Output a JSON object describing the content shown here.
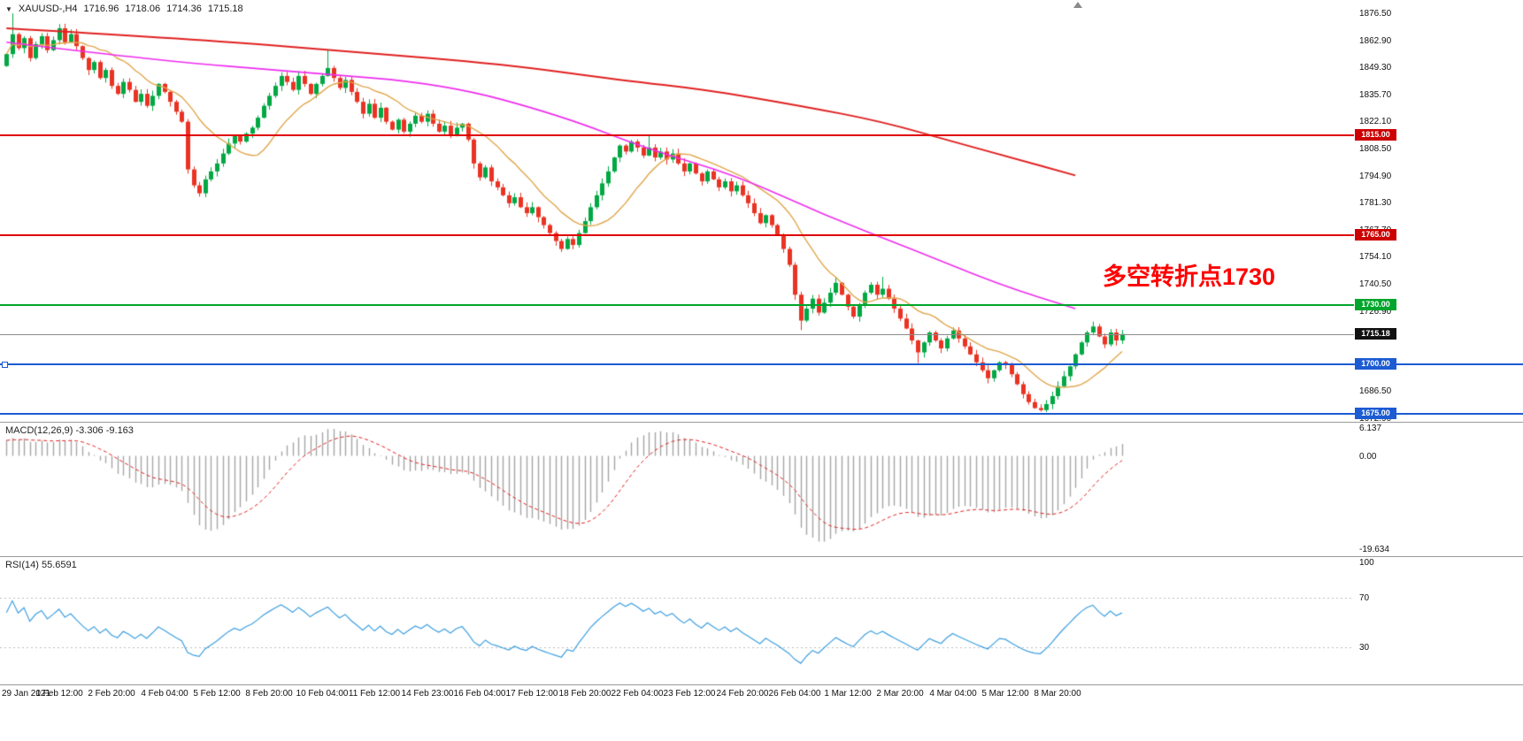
{
  "header": {
    "symbol": "XAUUSD-,H4",
    "open": "1716.96",
    "high": "1718.06",
    "low": "1714.36",
    "close": "1715.18"
  },
  "annotation": {
    "text": "多空转折点1730",
    "color": "#ff0000"
  },
  "price_scale": {
    "ticks": [
      "1876.50",
      "1862.90",
      "1849.30",
      "1835.70",
      "1822.10",
      "1808.50",
      "1794.90",
      "1781.30",
      "1767.70",
      "1754.10",
      "1740.50",
      "1726.90",
      "1686.50",
      "1672.90"
    ]
  },
  "chart_data": {
    "type": "candlestick",
    "symbol": "XAUUSD-",
    "timeframe": "H4",
    "price_axis": {
      "max": 1883.2,
      "min": 1671.1
    },
    "first_open": 1850,
    "closes": [
      1856,
      1866,
      1859,
      1864,
      1854,
      1861,
      1865,
      1858,
      1863,
      1869,
      1862,
      1866,
      1860,
      1854,
      1848,
      1852,
      1844,
      1848,
      1840,
      1836,
      1842,
      1838,
      1832,
      1836,
      1830,
      1835,
      1841,
      1837,
      1832,
      1827,
      1822,
      1798,
      1790,
      1786,
      1793,
      1797,
      1801,
      1806,
      1811,
      1815,
      1812,
      1816,
      1819,
      1824,
      1830,
      1835,
      1840,
      1845,
      1842,
      1838,
      1845,
      1841,
      1836,
      1841,
      1845,
      1849,
      1844,
      1839,
      1843,
      1837,
      1832,
      1826,
      1831,
      1824,
      1829,
      1822,
      1818,
      1823,
      1817,
      1821,
      1825,
      1822,
      1826,
      1821,
      1817,
      1820,
      1815,
      1819,
      1821,
      1813,
      1801,
      1794,
      1799,
      1792,
      1789,
      1785,
      1781,
      1784,
      1779,
      1776,
      1779,
      1774,
      1770,
      1766,
      1762,
      1758,
      1763,
      1760,
      1766,
      1772,
      1779,
      1785,
      1791,
      1797,
      1804,
      1810,
      1807,
      1812,
      1809,
      1805,
      1809,
      1804,
      1807,
      1803,
      1806,
      1801,
      1797,
      1801,
      1796,
      1792,
      1797,
      1793,
      1789,
      1792,
      1787,
      1790,
      1785,
      1781,
      1776,
      1771,
      1775,
      1770,
      1765,
      1758,
      1750,
      1735,
      1722,
      1728,
      1733,
      1726,
      1731,
      1736,
      1741,
      1735,
      1729,
      1724,
      1730,
      1736,
      1740,
      1735,
      1738,
      1733,
      1728,
      1723,
      1718,
      1712,
      1706,
      1711,
      1716,
      1712,
      1708,
      1713,
      1717,
      1713,
      1709,
      1705,
      1701,
      1697,
      1693,
      1697,
      1701,
      1700,
      1695,
      1690,
      1685,
      1681,
      1678,
      1677,
      1680,
      1684,
      1689,
      1694,
      1699,
      1705,
      1711,
      1716,
      1719,
      1714,
      1710,
      1716,
      1712,
      1715.18
    ],
    "high_overrides": {
      "1": 1876.5,
      "55": 1858,
      "110": 1815.6,
      "150": 1744,
      "186": 1721.5
    },
    "low_overrides": {
      "33": 1784.3,
      "96": 1757.6,
      "136": 1717.2,
      "156": 1700.6,
      "177": 1676.2
    },
    "colors": {
      "up": "#00a843",
      "down": "#ea3323"
    },
    "moving_averages": [
      {
        "name": "ma-fast",
        "color": "#e0a64b",
        "type": "sma",
        "period": 13
      },
      {
        "name": "ma-mid",
        "color": "#ee2bee",
        "anchors": [
          [
            0,
            1862
          ],
          [
            25,
            1853
          ],
          [
            50,
            1847
          ],
          [
            75,
            1841
          ],
          [
            95,
            1825
          ],
          [
            110,
            1808
          ],
          [
            125,
            1795
          ],
          [
            140,
            1775
          ],
          [
            155,
            1758
          ],
          [
            170,
            1740
          ],
          [
            183,
            1728
          ]
        ]
      },
      {
        "name": "ma-slow",
        "color": "#e02020",
        "anchors": [
          [
            0,
            1869
          ],
          [
            30,
            1864
          ],
          [
            60,
            1857
          ],
          [
            85,
            1851
          ],
          [
            105,
            1843
          ],
          [
            120,
            1838
          ],
          [
            136,
            1830
          ],
          [
            150,
            1822
          ],
          [
            162,
            1812
          ],
          [
            172,
            1804
          ],
          [
            183,
            1795
          ]
        ]
      }
    ],
    "levels": [
      {
        "value": "1815.00",
        "price": 1815.0,
        "color": "#e00000",
        "tag_bg": "#cc0000",
        "full_width": false,
        "thickness": 2
      },
      {
        "value": "1765.00",
        "price": 1765.0,
        "color": "#e00000",
        "tag_bg": "#cc0000",
        "full_width": false,
        "thickness": 2
      },
      {
        "value": "1730.00",
        "price": 1730.0,
        "color": "#00a52c",
        "tag_bg": "#00a52c",
        "full_width": false,
        "thickness": 2
      },
      {
        "value": "1715.18",
        "price": 1715.18,
        "color": "#8c8c8c",
        "tag_bg": "#111111",
        "full_width": false,
        "thickness": 1
      },
      {
        "value": "1700.00",
        "price": 1700.0,
        "color": "#1c5bd2",
        "tag_bg": "#1c5bd2",
        "full_width": true,
        "thickness": 2,
        "handle": true
      },
      {
        "value": "1675.00",
        "price": 1675.0,
        "color": "#1c5bd2",
        "tag_bg": "#1c5bd2",
        "full_width": true,
        "thickness": 2
      }
    ],
    "time_axis": {
      "bars_per_label": 9,
      "labels": [
        "29 Jan 2021",
        "1 Feb 12:00",
        "2 Feb 20:00",
        "4 Feb 04:00",
        "5 Feb 12:00",
        "8 Feb 20:00",
        "10 Feb 04:00",
        "11 Feb 12:00",
        "14 Feb 23:00",
        "16 Feb 04:00",
        "17 Feb 12:00",
        "18 Feb 20:00",
        "22 Feb 04:00",
        "23 Feb 12:00",
        "24 Feb 20:00",
        "26 Feb 04:00",
        "1 Mar 12:00",
        "2 Mar 20:00",
        "4 Mar 04:00",
        "5 Mar 12:00",
        "8 Mar 20:00"
      ]
    },
    "indicators": {
      "macd": {
        "label": "MACD(12,26,9)",
        "values": "-3.306 -9.163",
        "fast": 12,
        "slow": 26,
        "signal": 9,
        "max": 6.137,
        "min": -19.634,
        "scale": [
          "6.137",
          "0.00",
          "-19.634"
        ],
        "scale_values": [
          6.137,
          0,
          -19.634
        ],
        "hist_color": "#a6a6a6",
        "signal_color": "#e02020"
      },
      "rsi": {
        "label": "RSI(14)",
        "value": "55.6591",
        "period": 14,
        "scale": [
          "100",
          "70",
          "30"
        ],
        "scale_values": [
          100,
          70,
          30
        ],
        "levels": [
          70,
          30
        ],
        "color": "#3d9fe0",
        "level_color": "#bdbdbd"
      }
    }
  }
}
